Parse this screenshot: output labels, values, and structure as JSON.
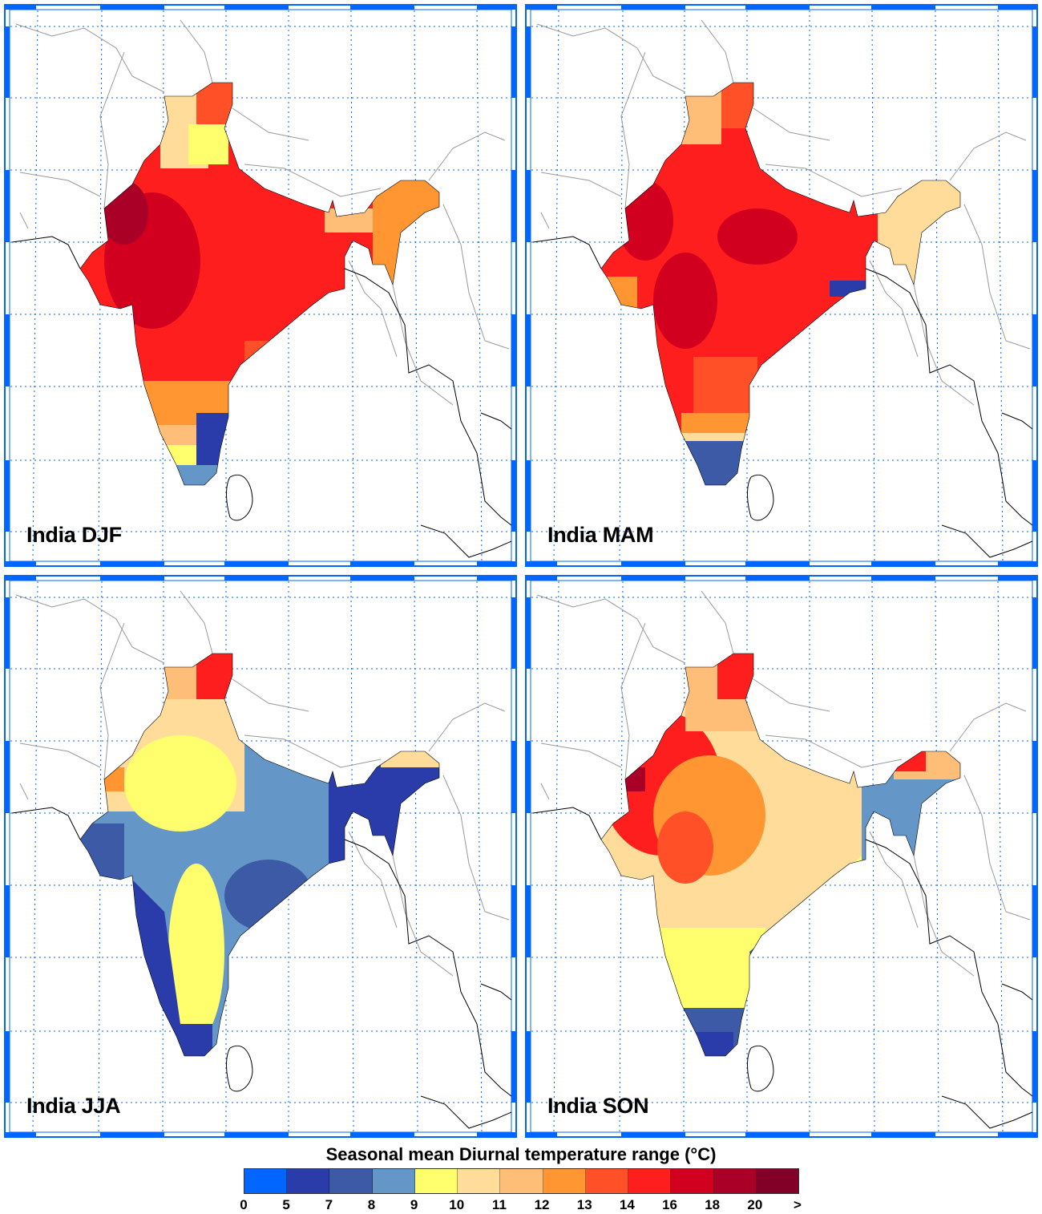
{
  "panels": [
    {
      "title": "India DJF"
    },
    {
      "title": "India MAM"
    },
    {
      "title": "India JJA"
    },
    {
      "title": "India SON"
    }
  ],
  "legend": {
    "title": "Seasonal mean Diurnal temperature range (°C)",
    "labels": [
      "0",
      "5",
      "7",
      "8",
      "9",
      "10",
      "11",
      "12",
      "13",
      "14",
      "16",
      "18",
      "20",
      ">"
    ],
    "colors": [
      "#0066ff",
      "#2a3caa",
      "#3c5aa5",
      "#6496c8",
      "#ffff6e",
      "#ffdc9a",
      "#ffbe78",
      "#ff9632",
      "#ff5028",
      "#ff1e1e",
      "#d2001e",
      "#aa0028",
      "#820028"
    ]
  },
  "grid_color": "#0066ff"
}
